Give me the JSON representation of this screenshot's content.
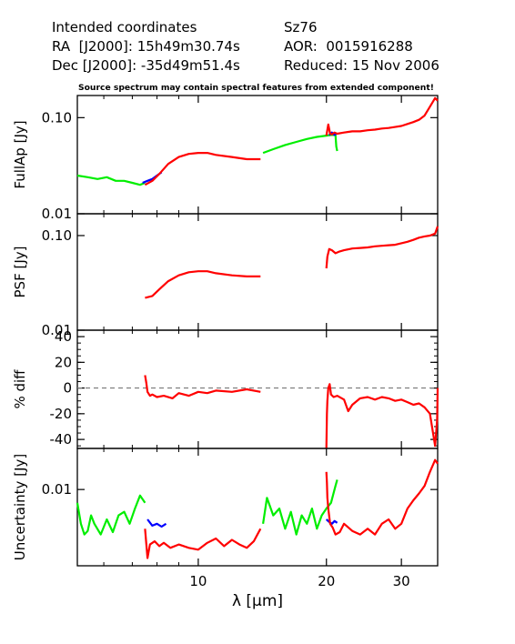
{
  "header": {
    "col1_line1": "Intended coordinates",
    "col1_line2": "RA  [J2000]: 15h49m30.74s",
    "col1_line3": "Dec [J2000]: -35d49m51.4s",
    "col2_line1": "Sz76",
    "col2_line2": "AOR:  0015916288",
    "col2_line3": "Reduced: 15 Nov 2006"
  },
  "note": "Source spectrum may contain spectral features from extended component!",
  "chart_data": [
    {
      "type": "line",
      "panel": "fullap",
      "ylabel": "FullAp [Jy]",
      "yscale": "log",
      "ylim": [
        0.01,
        0.17
      ],
      "yticks": [
        0.01,
        0.1
      ],
      "ytick_labels": [
        "0.01",
        "0.10"
      ],
      "xscale": "log",
      "xlim": [
        5.2,
        36.5
      ],
      "series": [
        {
          "color": "#00ee00",
          "x": [
            5.2,
            5.5,
            5.8,
            6.1,
            6.4,
            6.7,
            7.0,
            7.3,
            7.5
          ],
          "y": [
            0.025,
            0.024,
            0.023,
            0.024,
            0.022,
            0.022,
            0.021,
            0.02,
            0.021
          ]
        },
        {
          "color": "#0000ff",
          "x": [
            7.4,
            7.6,
            7.8,
            8.0,
            8.2
          ],
          "y": [
            0.021,
            0.022,
            0.023,
            0.025,
            0.027
          ]
        },
        {
          "color": "#ff0000",
          "x": [
            7.5,
            7.8,
            8.1,
            8.5,
            9.0,
            9.5,
            10.0,
            10.5,
            11.0,
            12.0,
            13.0,
            14.0
          ],
          "y": [
            0.02,
            0.022,
            0.026,
            0.033,
            0.039,
            0.042,
            0.043,
            0.043,
            0.041,
            0.039,
            0.037,
            0.037
          ]
        },
        {
          "color": "#00ee00",
          "x": [
            14.2,
            15.0,
            16.0,
            17.0,
            18.0,
            19.0,
            20.0,
            20.5,
            21.0
          ],
          "y": [
            0.043,
            0.047,
            0.052,
            0.056,
            0.06,
            0.063,
            0.065,
            0.066,
            0.066
          ]
        },
        {
          "color": "#00ee00",
          "x": [
            21.0,
            21.1,
            21.2
          ],
          "y": [
            0.066,
            0.05,
            0.045
          ]
        },
        {
          "color": "#0000ff",
          "x": [
            20.3,
            20.6,
            20.9,
            21.2
          ],
          "y": [
            0.066,
            0.07,
            0.066,
            0.069
          ]
        },
        {
          "color": "#ff0000",
          "x": [
            20.0,
            20.2,
            20.4,
            20.6,
            20.9,
            21.2,
            22.0,
            23.0,
            24.0,
            25.0,
            26.0,
            27.0,
            28.0,
            29.0,
            30.0,
            31.0,
            32.0,
            33.0,
            34.0,
            35.0,
            36.0,
            36.5
          ],
          "y": [
            0.065,
            0.085,
            0.068,
            0.067,
            0.07,
            0.068,
            0.07,
            0.072,
            0.072,
            0.074,
            0.075,
            0.077,
            0.078,
            0.08,
            0.082,
            0.086,
            0.09,
            0.095,
            0.105,
            0.13,
            0.16,
            0.15
          ]
        }
      ]
    },
    {
      "type": "line",
      "panel": "psf",
      "ylabel": "PSF [Jy]",
      "yscale": "log",
      "ylim": [
        0.01,
        0.17
      ],
      "yticks": [
        0.01,
        0.1
      ],
      "ytick_labels": [
        "0.01",
        "0.10"
      ],
      "xscale": "log",
      "xlim": [
        5.2,
        36.5
      ],
      "series": [
        {
          "color": "#ff0000",
          "x": [
            7.5,
            7.8,
            8.1,
            8.5,
            9.0,
            9.5,
            10.0,
            10.5,
            11.0,
            12.0,
            13.0,
            14.0
          ],
          "y": [
            0.022,
            0.023,
            0.027,
            0.033,
            0.038,
            0.041,
            0.042,
            0.042,
            0.04,
            0.038,
            0.037,
            0.037
          ]
        },
        {
          "color": "#ff0000",
          "x": [
            20.0,
            20.1,
            20.3,
            20.6,
            21.0,
            21.5,
            22.0,
            23.0,
            24.0,
            25.0,
            26.0,
            27.0,
            28.0,
            29.0,
            30.0,
            31.0,
            32.0,
            33.0,
            34.0,
            35.0,
            36.0,
            36.5
          ],
          "y": [
            0.045,
            0.06,
            0.072,
            0.07,
            0.065,
            0.068,
            0.07,
            0.073,
            0.074,
            0.075,
            0.077,
            0.078,
            0.079,
            0.08,
            0.083,
            0.086,
            0.09,
            0.095,
            0.098,
            0.1,
            0.105,
            0.125
          ]
        }
      ]
    },
    {
      "type": "line",
      "panel": "diff",
      "ylabel": "% diff",
      "yscale": "linear",
      "ylim": [
        -47,
        45
      ],
      "yticks": [
        -40,
        -20,
        0,
        20,
        40
      ],
      "ytick_labels": [
        "-40",
        "-20",
        "0",
        "20",
        "40"
      ],
      "zero_line": true,
      "xscale": "log",
      "xlim": [
        5.2,
        36.5
      ],
      "series": [
        {
          "color": "#ff0000",
          "x": [
            7.5,
            7.55,
            7.6,
            7.7,
            7.8,
            8.0,
            8.3,
            8.7,
            9.0,
            9.5,
            10.0,
            10.5,
            11.0,
            12.0,
            13.0,
            14.0
          ],
          "y": [
            10,
            4,
            -3,
            -6,
            -5,
            -7,
            -6,
            -8,
            -4,
            -6,
            -3,
            -4,
            -2,
            -3,
            -1,
            -3
          ]
        },
        {
          "color": "#ff0000",
          "x": [
            20.0,
            20.05,
            20.1,
            20.2,
            20.35,
            20.5,
            20.8,
            21.2,
            22.0,
            22.5,
            23.0,
            24.0,
            25.0,
            26.0,
            27.0,
            28.0,
            29.0,
            30.0,
            31.0,
            32.0,
            33.0,
            34.0,
            35.0,
            36.0,
            36.4,
            36.5
          ],
          "y": [
            -47,
            -20,
            -10,
            0,
            3,
            -5,
            -7,
            -6,
            -9,
            -18,
            -13,
            -8,
            -7,
            -9,
            -7,
            -8,
            -10,
            -9,
            -11,
            -13,
            -12,
            -15,
            -20,
            -45,
            -25,
            0
          ]
        }
      ]
    },
    {
      "type": "line",
      "panel": "uncertainty",
      "ylabel": "Uncertainty [Jy]",
      "yscale": "log",
      "ylim": [
        0.0013,
        0.03
      ],
      "yticks": [
        0.01
      ],
      "ytick_labels": [
        "0.01"
      ],
      "xscale": "log",
      "xlim": [
        5.2,
        36.5
      ],
      "xlabel": "λ [μm]",
      "xticks": [
        10,
        20,
        30
      ],
      "xtick_labels": [
        "10",
        "20",
        "30"
      ],
      "series": [
        {
          "color": "#00ee00",
          "x": [
            5.2,
            5.3,
            5.4,
            5.5,
            5.6,
            5.7,
            5.9,
            6.1,
            6.3,
            6.5,
            6.7,
            6.9,
            7.1,
            7.3,
            7.5
          ],
          "y": [
            0.007,
            0.004,
            0.003,
            0.0033,
            0.005,
            0.004,
            0.003,
            0.0045,
            0.0032,
            0.005,
            0.0055,
            0.004,
            0.006,
            0.0085,
            0.007
          ]
        },
        {
          "color": "#0000ff",
          "x": [
            7.6,
            7.8,
            8.0,
            8.2,
            8.4
          ],
          "y": [
            0.0045,
            0.0038,
            0.004,
            0.0037,
            0.004
          ]
        },
        {
          "color": "#ff0000",
          "x": [
            7.5,
            7.6,
            7.7,
            7.9,
            8.1,
            8.3,
            8.6,
            9.0,
            9.5,
            10.0,
            10.5,
            11.0,
            11.5,
            12.0,
            12.5,
            13.0,
            13.5,
            14.0
          ],
          "y": [
            0.0035,
            0.0016,
            0.0023,
            0.0025,
            0.0022,
            0.0024,
            0.0021,
            0.0023,
            0.0021,
            0.002,
            0.0024,
            0.0027,
            0.0022,
            0.0026,
            0.0023,
            0.0021,
            0.0025,
            0.0035
          ]
        },
        {
          "color": "#00ee00",
          "x": [
            14.2,
            14.5,
            15.0,
            15.5,
            16.0,
            16.5,
            17.0,
            17.5,
            18.0,
            18.5,
            19.0,
            19.5,
            20.0,
            20.5,
            21.0,
            21.2
          ],
          "y": [
            0.004,
            0.008,
            0.005,
            0.006,
            0.0035,
            0.0055,
            0.003,
            0.005,
            0.004,
            0.006,
            0.0035,
            0.005,
            0.006,
            0.007,
            0.011,
            0.013
          ]
        },
        {
          "color": "#0000ff",
          "x": [
            20.0,
            20.3,
            20.6,
            20.9,
            21.2
          ],
          "y": [
            0.0045,
            0.0042,
            0.004,
            0.0043,
            0.0041
          ]
        },
        {
          "color": "#ff0000",
          "x": [
            20.0,
            20.05,
            20.1,
            20.2,
            20.4,
            20.7,
            21.0,
            21.5,
            22.0,
            23.0,
            24.0,
            25.0,
            26.0,
            27.0,
            28.0,
            29.0,
            30.0,
            31.0,
            32.0,
            33.0,
            34.0,
            35.0,
            36.0,
            36.5
          ],
          "y": [
            0.016,
            0.012,
            0.008,
            0.006,
            0.004,
            0.0036,
            0.003,
            0.0032,
            0.004,
            0.0033,
            0.003,
            0.0035,
            0.003,
            0.004,
            0.0045,
            0.0035,
            0.004,
            0.006,
            0.0075,
            0.009,
            0.011,
            0.016,
            0.022,
            0.02
          ]
        }
      ]
    }
  ]
}
